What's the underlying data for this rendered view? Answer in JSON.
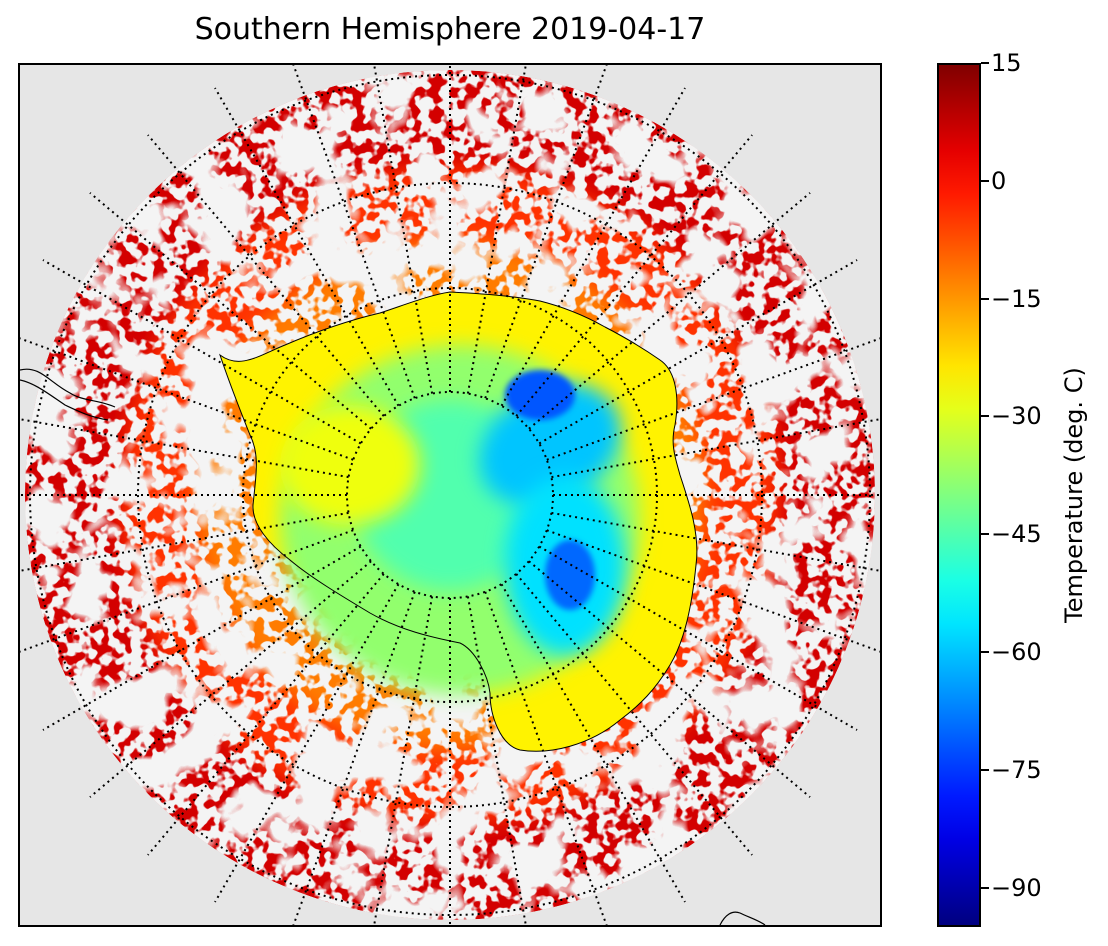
{
  "title": "Southern Hemisphere 2019-04-17",
  "map": {
    "projection": "south-polar-stereographic",
    "background_color": "#e6e6e6",
    "graticule": {
      "style": "dotted",
      "color": "#000000",
      "meridian_step_deg": 10,
      "parallels_deg": [
        -80,
        -70,
        -60,
        -50
      ]
    },
    "features": [
      "antarctica-coastline",
      "south-america-tip",
      "new-zealand-fragment"
    ]
  },
  "colorbar": {
    "label": "Temperature (deg. C)",
    "colormap": "jet",
    "min": -95,
    "max": 15,
    "ticks": [
      15,
      0,
      -15,
      -30,
      -45,
      -60,
      -75,
      -90
    ],
    "tick_labels": [
      "15",
      "0",
      "−15",
      "−30",
      "−45",
      "−60",
      "−75",
      "−90"
    ]
  },
  "chart_data": {
    "type": "heatmap",
    "title": "Southern Hemisphere 2019-04-17",
    "variable": "Temperature (deg. C)",
    "range": [
      -95,
      15
    ],
    "approx_regions": [
      {
        "region": "east-antarctic-plateau",
        "temperature_c": -65
      },
      {
        "region": "pole-interior",
        "temperature_c": -45
      },
      {
        "region": "antarctic-coast",
        "temperature_c": -25
      },
      {
        "region": "sea-ice-zone",
        "temperature_c": -10
      },
      {
        "region": "southern-ocean-mid-latitudes",
        "temperature_c": 5
      }
    ]
  }
}
